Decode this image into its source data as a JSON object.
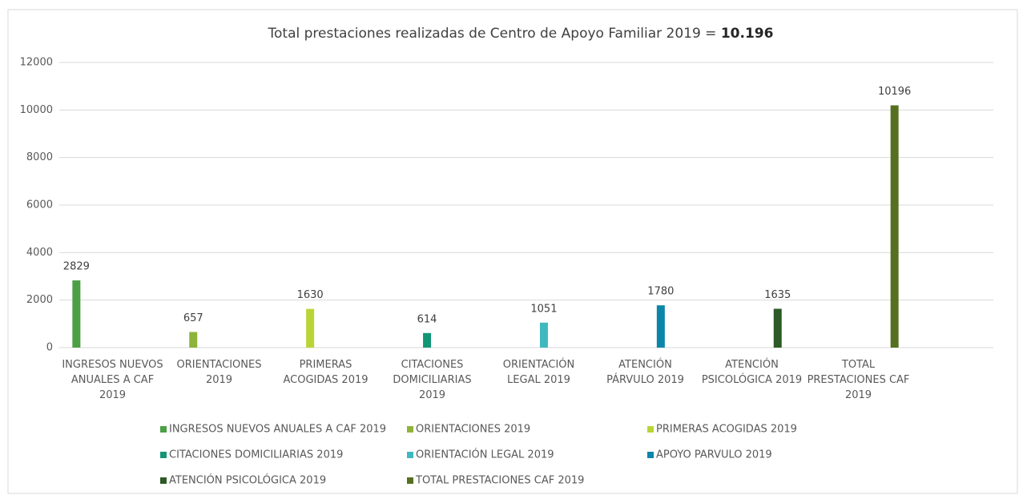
{
  "chart_data": {
    "type": "bar",
    "title": "Total prestaciones realizadas de Centro de Apoyo Familiar 2019 =",
    "title_total": "10.196",
    "categories": [
      "INGRESOS NUEVOS ANUALES A CAF 2019",
      "ORIENTACIONES 2019",
      "PRIMERAS ACOGIDAS 2019",
      "CITACIONES DOMICILIARIAS 2019",
      "ORIENTACIÓN LEGAL 2019",
      "ATENCIÓN PÁRVULO 2019",
      "ATENCIÓN PSICOLÓGICA 2019",
      "TOTAL PRESTACIONES CAF 2019"
    ],
    "series": [
      {
        "name": "INGRESOS NUEVOS ANUALES A CAF 2019",
        "color": "#4c9f45",
        "values": [
          2829,
          null,
          null,
          null,
          null,
          null,
          null,
          null
        ]
      },
      {
        "name": "ORIENTACIONES 2019",
        "color": "#8fb33a",
        "values": [
          null,
          657,
          null,
          null,
          null,
          null,
          null,
          null
        ]
      },
      {
        "name": "PRIMERAS ACOGIDAS 2019",
        "color": "#b8d535",
        "values": [
          null,
          null,
          1630,
          null,
          null,
          null,
          null,
          null
        ]
      },
      {
        "name": "CITACIONES DOMICILIARIAS 2019",
        "color": "#129676",
        "values": [
          null,
          null,
          null,
          614,
          null,
          null,
          null,
          null
        ]
      },
      {
        "name": "ORIENTACIÓN LEGAL 2019",
        "color": "#40b8c0",
        "values": [
          null,
          null,
          null,
          null,
          1051,
          null,
          null,
          null
        ]
      },
      {
        "name": "APOYO PARVULO 2019",
        "color": "#0c86a8",
        "values": [
          null,
          null,
          null,
          null,
          null,
          1780,
          null,
          null
        ]
      },
      {
        "name": "ATENCIÓN PSICOLÓGICA 2019",
        "color": "#2d5a26",
        "values": [
          null,
          null,
          null,
          null,
          null,
          null,
          1635,
          null
        ]
      },
      {
        "name": "TOTAL PRESTACIONES CAF 2019",
        "color": "#55701f",
        "values": [
          null,
          null,
          null,
          null,
          null,
          null,
          null,
          10196
        ]
      }
    ],
    "ylim": [
      0,
      12000
    ],
    "yticks": [
      0,
      2000,
      4000,
      6000,
      8000,
      10000,
      12000
    ],
    "grid": true,
    "legend": "bottom"
  }
}
